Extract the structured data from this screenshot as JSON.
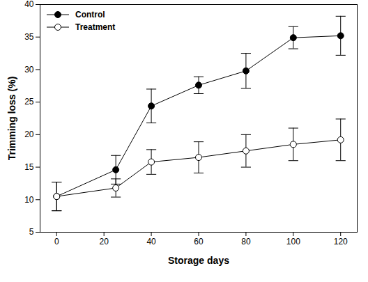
{
  "chart_data": {
    "type": "line",
    "x_label": "Storage days",
    "y_label": "Trimming loss (%)",
    "x": [
      0,
      25,
      40,
      60,
      80,
      100,
      120
    ],
    "series": [
      {
        "name": "Control",
        "color": "#000000",
        "marker": "filled circle",
        "line_style": "solid",
        "values": [
          10.5,
          14.6,
          24.4,
          27.6,
          29.8,
          34.9,
          35.2
        ],
        "error": [
          2.2,
          2.2,
          2.6,
          1.3,
          2.7,
          1.7,
          3.0
        ]
      },
      {
        "name": "Treatment",
        "color": "#000000",
        "marker": "open circle",
        "line_style": "solid",
        "values": [
          10.5,
          11.8,
          15.8,
          16.5,
          17.5,
          18.5,
          19.2
        ],
        "error": [
          2.2,
          1.4,
          1.9,
          2.4,
          2.5,
          2.5,
          3.2
        ]
      }
    ],
    "xlim": [
      -7,
      127
    ],
    "xticks": [
      0,
      20,
      40,
      60,
      80,
      100,
      120
    ],
    "ylim": [
      5,
      40
    ],
    "yticks": [
      5,
      10,
      15,
      20,
      25,
      30,
      35,
      40
    ],
    "grid": false,
    "legend": "upper left"
  }
}
